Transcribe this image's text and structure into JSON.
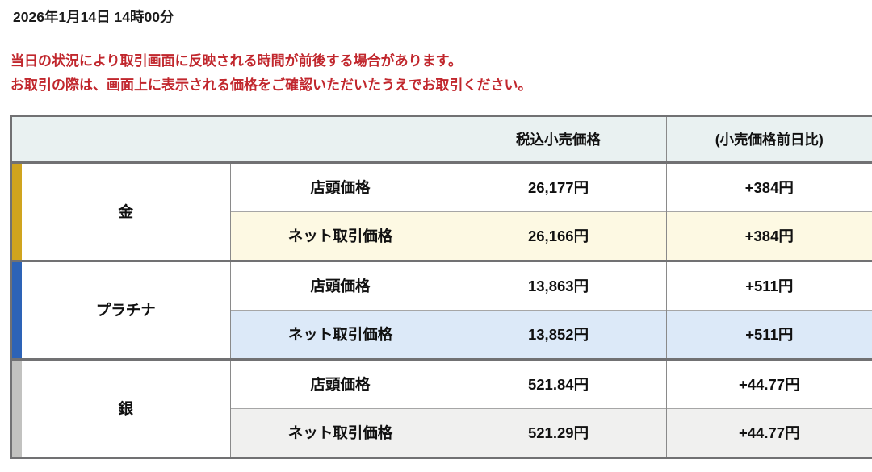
{
  "page": {
    "datetime": "2026年1月14日 14時00分",
    "notice_line1": "当日の状況により取引画面に反映される時間が前後する場合があります。",
    "notice_line2": "お取引の際は、画面上に表示される価格をご確認いただいたうえでお取引ください。"
  },
  "colors": {
    "notice_text": "#c1272d",
    "header_bg": "#e9f1f1",
    "border_dark": "#717173",
    "border_light": "#a6a6a6"
  },
  "table": {
    "headers": {
      "price": "税込小売価格",
      "change": "(小売価格前日比)"
    },
    "row_labels": {
      "store": "店頭価格",
      "net": "ネット取引価格"
    },
    "metals": [
      {
        "name": "金",
        "stripe_color": "#d0a41e",
        "net_row_bg": "#fdf9e3",
        "store": {
          "price": "26,177円",
          "change": "+384円"
        },
        "net": {
          "price": "26,166円",
          "change": "+384円"
        }
      },
      {
        "name": "プラチナ",
        "stripe_color": "#2d63b7",
        "net_row_bg": "#dce9f8",
        "store": {
          "price": "13,863円",
          "change": "+511円"
        },
        "net": {
          "price": "13,852円",
          "change": "+511円"
        }
      },
      {
        "name": "銀",
        "stripe_color": "#c2c2c0",
        "net_row_bg": "#f0f0ef",
        "store": {
          "price": "521.84円",
          "change": "+44.77円"
        },
        "net": {
          "price": "521.29円",
          "change": "+44.77円"
        }
      }
    ]
  }
}
